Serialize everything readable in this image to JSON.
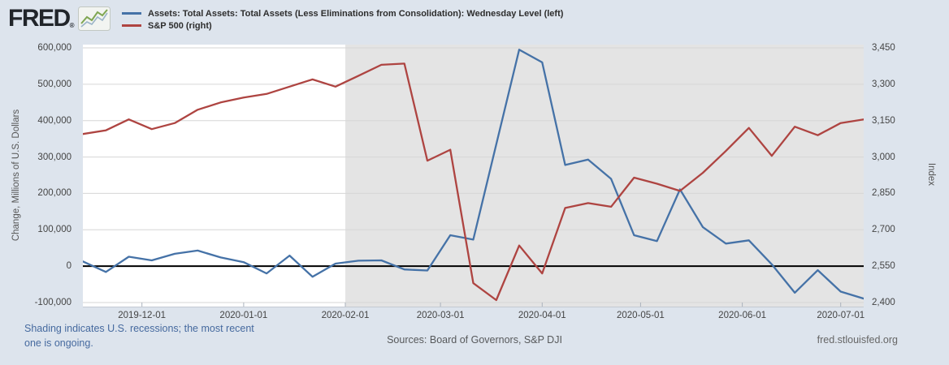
{
  "header": {
    "logo": "FRED",
    "registered": "®",
    "legend": [
      {
        "label": "Assets: Total Assets: Total Assets (Less Eliminations from Consolidation): Wednesday Level (left)",
        "color": "#4572a7"
      },
      {
        "label": "S&P 500 (right)",
        "color": "#ae4441"
      }
    ]
  },
  "chart_data": {
    "type": "line",
    "x": [
      "2019-11-13",
      "2019-11-20",
      "2019-11-27",
      "2019-12-04",
      "2019-12-11",
      "2019-12-18",
      "2019-12-25",
      "2020-01-01",
      "2020-01-08",
      "2020-01-15",
      "2020-01-22",
      "2020-01-29",
      "2020-02-05",
      "2020-02-12",
      "2020-02-19",
      "2020-02-26",
      "2020-03-04",
      "2020-03-11",
      "2020-03-18",
      "2020-03-25",
      "2020-04-01",
      "2020-04-08",
      "2020-04-15",
      "2020-04-22",
      "2020-04-29",
      "2020-05-06",
      "2020-05-13",
      "2020-05-20",
      "2020-05-27",
      "2020-06-03",
      "2020-06-10",
      "2020-06-17",
      "2020-06-24",
      "2020-07-01",
      "2020-07-08"
    ],
    "series": [
      {
        "name": "Assets: Total Assets: Total Assets (Less Eliminations from Consolidation): Wednesday Level",
        "axis": "left",
        "color": "#4572a7",
        "values": [
          13000,
          -16000,
          26000,
          16000,
          34000,
          43000,
          24000,
          11000,
          -20000,
          29000,
          -29000,
          7000,
          15000,
          16000,
          -9000,
          -12000,
          85000,
          73000,
          335000,
          595000,
          560000,
          278000,
          293000,
          240000,
          85000,
          69000,
          211000,
          107000,
          62000,
          71000,
          5000,
          -73000,
          -11000,
          -70000,
          -89000
        ]
      },
      {
        "name": "S&P 500",
        "axis": "right",
        "color": "#ae4441",
        "values": [
          3095,
          3110,
          3155,
          3115,
          3140,
          3195,
          3225,
          3245,
          3260,
          3290,
          3320,
          3290,
          3335,
          3380,
          3385,
          2985,
          3030,
          2480,
          2410,
          2635,
          2520,
          2790,
          2810,
          2795,
          2915,
          2890,
          2860,
          2935,
          3025,
          3120,
          3005,
          3125,
          3090,
          3140,
          3155
        ]
      }
    ],
    "left_axis": {
      "label": "Change, Millions of U.S. Dollars",
      "ticks": [
        "600,000",
        "500,000",
        "400,000",
        "300,000",
        "200,000",
        "100,000",
        "0",
        "-100,000"
      ],
      "max": 600000,
      "min": -100000
    },
    "right_axis": {
      "label": "Index",
      "ticks": [
        "3,450",
        "3,300",
        "3,150",
        "3,000",
        "2,850",
        "2,700",
        "2,550",
        "2,400"
      ],
      "max": 3450,
      "min": 2400
    },
    "x_ticks": [
      {
        "label": "2019-12-01",
        "day": 18
      },
      {
        "label": "2020-01-01",
        "day": 49
      },
      {
        "label": "2020-02-01",
        "day": 80
      },
      {
        "label": "2020-03-01",
        "day": 109
      },
      {
        "label": "2020-04-01",
        "day": 140
      },
      {
        "label": "2020-05-01",
        "day": 170
      },
      {
        "label": "2020-06-01",
        "day": 201
      },
      {
        "label": "2020-07-01",
        "day": 231
      }
    ],
    "total_days": 238,
    "recession_start_day": 80,
    "zero_line_value": 0,
    "grid": true,
    "legend_position": "top",
    "colors": {
      "recession_shading": "#e4e4e4",
      "gridline": "#d6d6d6",
      "zero_line": "#000000",
      "background": "#dde4ed",
      "plot_background": "#ffffff"
    }
  },
  "footer": {
    "note": "Shading indicates U.S. recessions; the most recent one is ongoing.",
    "sources": "Sources: Board of Governors, S&P DJI",
    "site": "fred.stlouisfed.org"
  }
}
